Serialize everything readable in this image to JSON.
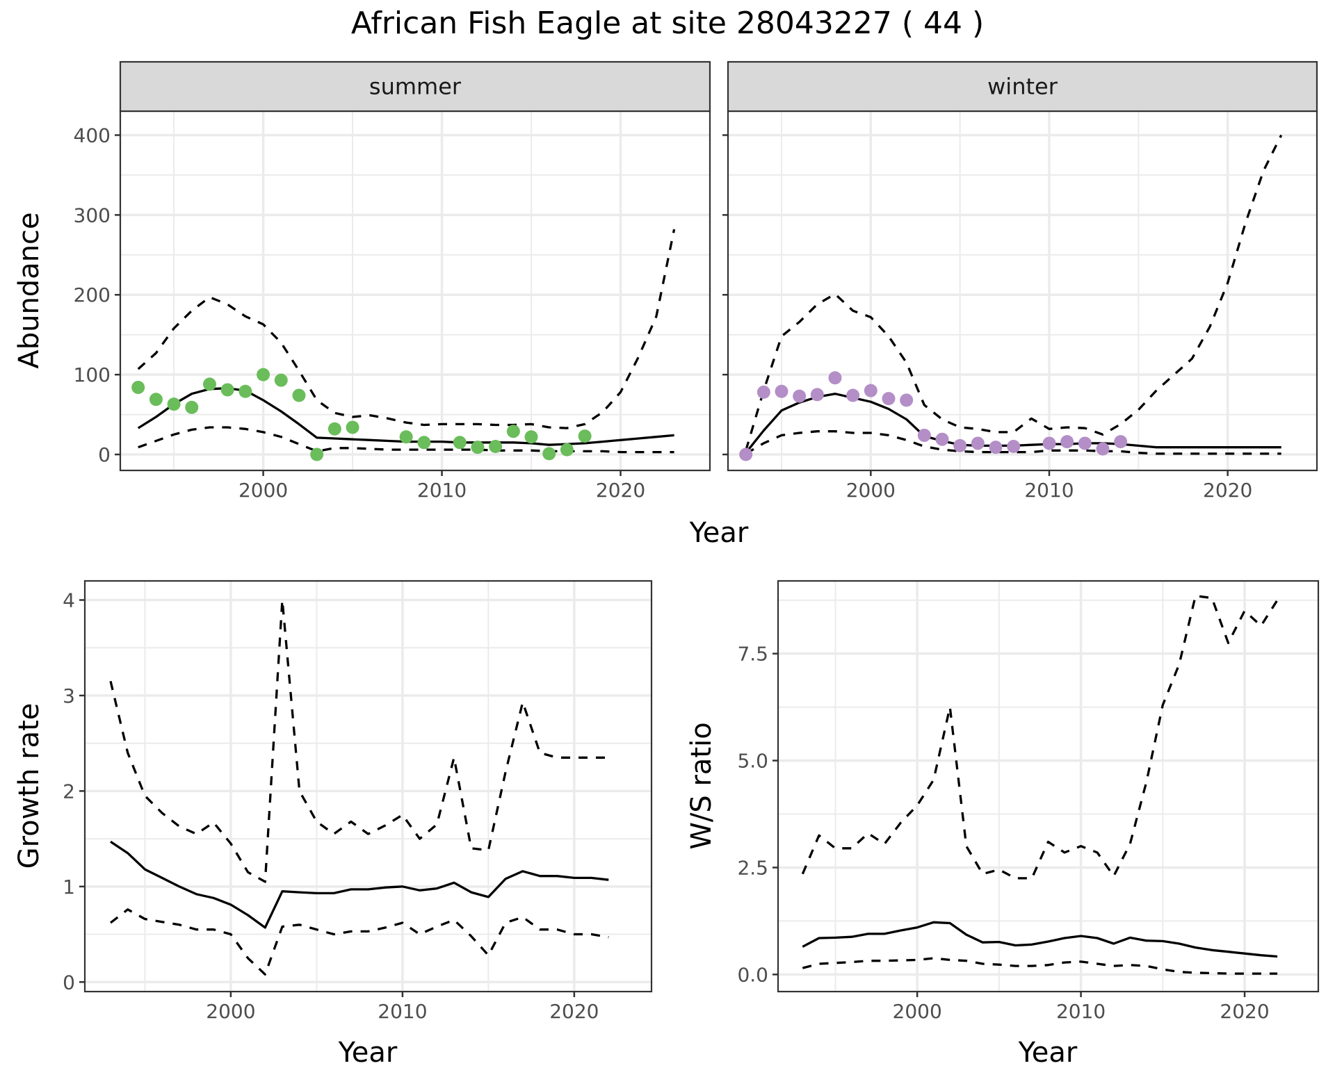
{
  "chart_data": {
    "title": "African Fish Eagle at site 28043227 ( 44 )",
    "panels": [
      {
        "id": "abundance-summer",
        "type": "line+scatter",
        "facet_label": "summer",
        "ylabel": "Abundance",
        "xlabel": "Year",
        "xlim": [
          1992,
          2025
        ],
        "ylim": [
          -20,
          430
        ],
        "xticks": [
          2000,
          2010,
          2020
        ],
        "yticks": [
          0,
          100,
          200,
          300,
          400
        ],
        "grid": true,
        "point_color": "#6ABD5A",
        "points": {
          "x": [
            1993,
            1994,
            1995,
            1996,
            1997,
            1998,
            1999,
            2000,
            2001,
            2002,
            2003,
            2004,
            2005,
            2008,
            2009,
            2011,
            2012,
            2013,
            2014,
            2015,
            2016,
            2017,
            2018
          ],
          "y": [
            84,
            69,
            63,
            59,
            88,
            81,
            79,
            100,
            93,
            74,
            0,
            32,
            34,
            22,
            15,
            15,
            9,
            10,
            29,
            22,
            1,
            6,
            23
          ]
        },
        "series": [
          {
            "name": "mean",
            "style": "solid",
            "x": [
              1993,
              1994,
              1995,
              1996,
              1997,
              1998,
              1999,
              2000,
              2001,
              2002,
              2003,
              2004,
              2005,
              2006,
              2007,
              2008,
              2009,
              2010,
              2011,
              2012,
              2013,
              2014,
              2015,
              2016,
              2017,
              2018,
              2019,
              2020,
              2021,
              2022,
              2023
            ],
            "y": [
              33,
              47,
              63,
              76,
              82,
              83,
              80,
              68,
              54,
              38,
              21,
              20,
              19,
              18,
              17,
              16,
              16,
              16,
              15,
              15,
              15,
              15,
              14,
              12,
              13,
              14,
              16,
              18,
              20,
              22,
              24
            ]
          },
          {
            "name": "upper",
            "style": "dashed",
            "x": [
              1993,
              1994,
              1995,
              1996,
              1997,
              1998,
              1999,
              2000,
              2001,
              2002,
              2003,
              2004,
              2005,
              2006,
              2007,
              2008,
              2009,
              2010,
              2011,
              2012,
              2013,
              2014,
              2015,
              2016,
              2017,
              2018,
              2019,
              2020,
              2021,
              2022,
              2023
            ],
            "y": [
              107,
              127,
              158,
              180,
              197,
              188,
              173,
              163,
              140,
              105,
              68,
              52,
              47,
              49,
              45,
              40,
              37,
              38,
              38,
              38,
              37,
              37,
              38,
              34,
              33,
              38,
              53,
              78,
              122,
              173,
              282
            ]
          },
          {
            "name": "lower",
            "style": "dashed",
            "x": [
              1993,
              1994,
              1995,
              1996,
              1997,
              1998,
              1999,
              2000,
              2001,
              2002,
              2003,
              2004,
              2005,
              2006,
              2007,
              2008,
              2009,
              2010,
              2011,
              2012,
              2013,
              2014,
              2015,
              2016,
              2017,
              2018,
              2019,
              2020,
              2021,
              2022,
              2023
            ],
            "y": [
              9,
              17,
              25,
              31,
              34,
              34,
              32,
              28,
              22,
              13,
              4,
              8,
              8,
              7,
              6,
              6,
              6,
              6,
              6,
              6,
              5,
              5,
              5,
              4,
              4,
              4,
              4,
              3,
              3,
              3,
              3
            ]
          }
        ]
      },
      {
        "id": "abundance-winter",
        "type": "line+scatter",
        "facet_label": "winter",
        "ylabel": "Abundance",
        "xlabel": "Year",
        "xlim": [
          1992,
          2025
        ],
        "ylim": [
          -20,
          430
        ],
        "xticks": [
          2000,
          2010,
          2020
        ],
        "yticks": [
          0,
          100,
          200,
          300,
          400
        ],
        "grid": true,
        "point_color": "#B48EC7",
        "points": {
          "x": [
            1993,
            1994,
            1995,
            1996,
            1997,
            1998,
            1999,
            2000,
            2001,
            2002,
            2003,
            2004,
            2005,
            2006,
            2007,
            2008,
            2010,
            2011,
            2012,
            2013,
            2014
          ],
          "y": [
            0,
            78,
            79,
            73,
            75,
            96,
            74,
            80,
            70,
            68,
            24,
            19,
            11,
            14,
            9,
            10,
            14,
            16,
            14,
            7,
            16
          ]
        },
        "series": [
          {
            "name": "mean",
            "style": "solid",
            "x": [
              1993,
              1994,
              1995,
              1996,
              1997,
              1998,
              1999,
              2000,
              2001,
              2002,
              2003,
              2004,
              2005,
              2006,
              2007,
              2008,
              2009,
              2010,
              2011,
              2012,
              2013,
              2014,
              2015,
              2016,
              2017,
              2018,
              2019,
              2020,
              2021,
              2022,
              2023
            ],
            "y": [
              2,
              30,
              55,
              65,
              72,
              76,
              71,
              66,
              57,
              44,
              23,
              17,
              12,
              11,
              11,
              11,
              12,
              13,
              13,
              14,
              14,
              13,
              11,
              9,
              9,
              9,
              9,
              9,
              9,
              9,
              9
            ]
          },
          {
            "name": "upper",
            "style": "dashed",
            "x": [
              1993,
              1994,
              1995,
              1996,
              1997,
              1998,
              1999,
              2000,
              2001,
              2002,
              2003,
              2004,
              2005,
              2006,
              2007,
              2008,
              2009,
              2010,
              2011,
              2012,
              2013,
              2014,
              2015,
              2016,
              2017,
              2018,
              2019,
              2020,
              2021,
              2022,
              2023
            ],
            "y": [
              5,
              80,
              148,
              166,
              188,
              201,
              180,
              172,
              148,
              115,
              62,
              44,
              34,
              32,
              28,
              28,
              45,
              32,
              34,
              33,
              25,
              38,
              56,
              80,
              100,
              120,
              160,
              215,
              290,
              355,
              400
            ]
          },
          {
            "name": "lower",
            "style": "dashed",
            "x": [
              1993,
              1994,
              1995,
              1996,
              1997,
              1998,
              1999,
              2000,
              2001,
              2002,
              2003,
              2004,
              2005,
              2006,
              2007,
              2008,
              2009,
              2010,
              2011,
              2012,
              2013,
              2014,
              2015,
              2016,
              2017,
              2018,
              2019,
              2020,
              2021,
              2022,
              2023
            ],
            "y": [
              1,
              14,
              24,
              27,
              29,
              29,
              27,
              27,
              24,
              18,
              10,
              6,
              4,
              3,
              3,
              3,
              3,
              5,
              5,
              5,
              4,
              4,
              2,
              1,
              1,
              1,
              1,
              1,
              1,
              1,
              1
            ]
          }
        ]
      },
      {
        "id": "growth-rate",
        "type": "line",
        "ylabel": "Growth rate",
        "xlabel": "Year",
        "xlim": [
          1991.5,
          2024.5
        ],
        "ylim": [
          -0.1,
          4.2
        ],
        "xticks": [
          2000,
          2010,
          2020
        ],
        "yticks": [
          0,
          1,
          2,
          3,
          4
        ],
        "grid": true,
        "series": [
          {
            "name": "mean",
            "style": "solid",
            "x": [
              1993,
              1994,
              1995,
              1996,
              1997,
              1998,
              1999,
              2000,
              2001,
              2002,
              2003,
              2004,
              2005,
              2006,
              2007,
              2008,
              2009,
              2010,
              2011,
              2012,
              2013,
              2014,
              2015,
              2016,
              2017,
              2018,
              2019,
              2020,
              2021,
              2022
            ],
            "y": [
              1.47,
              1.35,
              1.18,
              1.09,
              1.0,
              0.92,
              0.88,
              0.81,
              0.7,
              0.57,
              0.95,
              0.94,
              0.93,
              0.93,
              0.97,
              0.97,
              0.99,
              1.0,
              0.96,
              0.98,
              1.04,
              0.94,
              0.89,
              1.08,
              1.16,
              1.11,
              1.11,
              1.09,
              1.09,
              1.07
            ]
          },
          {
            "name": "upper",
            "style": "dashed",
            "x": [
              1993,
              1994,
              1995,
              1996,
              1997,
              1998,
              1999,
              2000,
              2001,
              2002,
              2003,
              2004,
              2005,
              2006,
              2007,
              2008,
              2009,
              2010,
              2011,
              2012,
              2013,
              2014,
              2015,
              2016,
              2017,
              2018,
              2019,
              2020,
              2021,
              2022
            ],
            "y": [
              3.15,
              2.4,
              1.95,
              1.77,
              1.63,
              1.55,
              1.67,
              1.45,
              1.15,
              1.05,
              4.0,
              2.0,
              1.68,
              1.55,
              1.68,
              1.55,
              1.64,
              1.75,
              1.5,
              1.65,
              2.35,
              1.4,
              1.38,
              2.2,
              2.93,
              2.4,
              2.35,
              2.35,
              2.35,
              2.35
            ]
          },
          {
            "name": "lower",
            "style": "dashed",
            "x": [
              1993,
              1994,
              1995,
              1996,
              1997,
              1998,
              1999,
              2000,
              2001,
              2002,
              2003,
              2004,
              2005,
              2006,
              2007,
              2008,
              2009,
              2010,
              2011,
              2012,
              2013,
              2014,
              2015,
              2016,
              2017,
              2018,
              2019,
              2020,
              2021,
              2022
            ],
            "y": [
              0.62,
              0.76,
              0.66,
              0.63,
              0.6,
              0.55,
              0.55,
              0.5,
              0.25,
              0.08,
              0.58,
              0.6,
              0.55,
              0.5,
              0.53,
              0.53,
              0.57,
              0.62,
              0.5,
              0.58,
              0.65,
              0.48,
              0.28,
              0.62,
              0.68,
              0.55,
              0.55,
              0.5,
              0.5,
              0.47
            ]
          }
        ]
      },
      {
        "id": "ws-ratio",
        "type": "line",
        "ylabel": "W/S ratio",
        "xlabel": "Year",
        "xlim": [
          1991.5,
          2024.5
        ],
        "ylim": [
          -0.4,
          9.2
        ],
        "xticks": [
          2000,
          2010,
          2020
        ],
        "yticks": [
          0.0,
          2.5,
          5.0,
          7.5
        ],
        "ytick_labels": [
          "0.0",
          "2.5",
          "5.0",
          "7.5"
        ],
        "grid": true,
        "series": [
          {
            "name": "mean",
            "style": "solid",
            "x": [
              1993,
              1994,
              1995,
              1996,
              1997,
              1998,
              1999,
              2000,
              2001,
              2002,
              2003,
              2004,
              2005,
              2006,
              2007,
              2008,
              2009,
              2010,
              2011,
              2012,
              2013,
              2014,
              2015,
              2016,
              2017,
              2018,
              2019,
              2020,
              2021,
              2022
            ],
            "y": [
              0.65,
              0.85,
              0.86,
              0.88,
              0.95,
              0.95,
              1.03,
              1.1,
              1.22,
              1.2,
              0.93,
              0.75,
              0.76,
              0.68,
              0.7,
              0.77,
              0.85,
              0.9,
              0.85,
              0.72,
              0.86,
              0.79,
              0.78,
              0.72,
              0.63,
              0.57,
              0.53,
              0.49,
              0.45,
              0.42
            ]
          },
          {
            "name": "upper",
            "style": "dashed",
            "x": [
              1993,
              1994,
              1995,
              1996,
              1997,
              1998,
              1999,
              2000,
              2001,
              2002,
              2003,
              2004,
              2005,
              2006,
              2007,
              2008,
              2009,
              2010,
              2011,
              2012,
              2013,
              2014,
              2015,
              2016,
              2017,
              2018,
              2019,
              2020,
              2021,
              2022
            ],
            "y": [
              2.35,
              3.25,
              2.95,
              2.95,
              3.3,
              3.05,
              3.55,
              3.95,
              4.55,
              6.25,
              3.0,
              2.35,
              2.45,
              2.25,
              2.25,
              3.1,
              2.85,
              3.0,
              2.85,
              2.3,
              3.05,
              4.5,
              6.3,
              7.25,
              8.85,
              8.8,
              7.75,
              8.5,
              8.15,
              8.75
            ]
          },
          {
            "name": "lower",
            "style": "dashed",
            "x": [
              1993,
              1994,
              1995,
              1996,
              1997,
              1998,
              1999,
              2000,
              2001,
              2002,
              2003,
              2004,
              2005,
              2006,
              2007,
              2008,
              2009,
              2010,
              2011,
              2012,
              2013,
              2014,
              2015,
              2016,
              2017,
              2018,
              2019,
              2020,
              2021,
              2022
            ],
            "y": [
              0.15,
              0.25,
              0.27,
              0.29,
              0.32,
              0.32,
              0.33,
              0.34,
              0.38,
              0.34,
              0.32,
              0.25,
              0.23,
              0.2,
              0.2,
              0.22,
              0.28,
              0.3,
              0.25,
              0.2,
              0.22,
              0.2,
              0.12,
              0.06,
              0.04,
              0.03,
              0.02,
              0.02,
              0.02,
              0.02
            ]
          }
        ]
      }
    ],
    "shared_x_title": "Year"
  }
}
